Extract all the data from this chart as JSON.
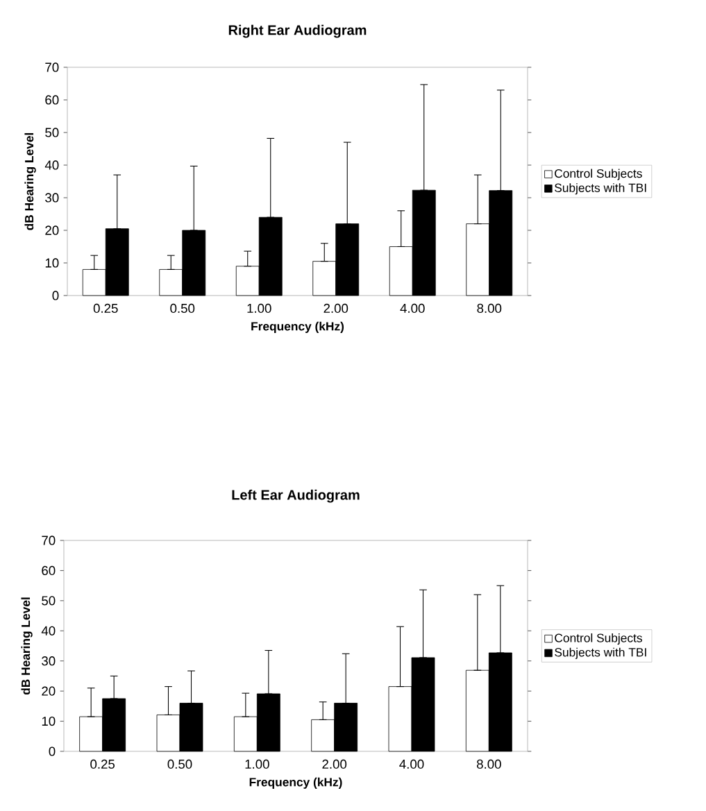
{
  "chart_data": [
    {
      "type": "bar",
      "title": "Right Ear Audiogram",
      "xlabel": "Frequency (kHz)",
      "ylabel": "dB Hearing Level",
      "categories": [
        "0.25",
        "0.50",
        "1.00",
        "2.00",
        "4.00",
        "8.00"
      ],
      "series": [
        {
          "name": "Control Subjects",
          "color": "#ffffff",
          "values": [
            8,
            8,
            9,
            10.5,
            15,
            22
          ],
          "errors": [
            [
              8,
              12.3
            ],
            [
              8,
              12.3
            ],
            [
              9,
              13.6
            ],
            [
              10.5,
              16
            ],
            [
              15,
              26
            ],
            [
              22,
              37
            ]
          ]
        },
        {
          "name": "Subjects with TBI",
          "color": "#000000",
          "values": [
            20.5,
            20,
            24,
            22,
            32.3,
            32.2
          ],
          "errors": [
            [
              20.5,
              37
            ],
            [
              20,
              39.7
            ],
            [
              24,
              48.2
            ],
            [
              22,
              47
            ],
            [
              32.3,
              64.7
            ],
            [
              32.2,
              63
            ]
          ]
        }
      ],
      "ylim": [
        0,
        70
      ],
      "yticks": [
        0,
        10,
        20,
        30,
        40,
        50,
        60,
        70
      ],
      "legend": "right"
    },
    {
      "type": "bar",
      "title": "Left Ear Audiogram",
      "xlabel": "Frequency (kHz)",
      "ylabel": "dB Hearing Level",
      "categories": [
        "0.25",
        "0.50",
        "1.00",
        "2.00",
        "4.00",
        "8.00"
      ],
      "series": [
        {
          "name": "Control Subjects",
          "color": "#ffffff",
          "values": [
            11.5,
            12.1,
            11.5,
            10.5,
            21.5,
            26.9
          ],
          "errors": [
            [
              11.5,
              21
            ],
            [
              12.1,
              21.5
            ],
            [
              11.5,
              19.3
            ],
            [
              10.5,
              16.4
            ],
            [
              21.5,
              41.4
            ],
            [
              26.9,
              52
            ]
          ]
        },
        {
          "name": "Subjects with TBI",
          "color": "#000000",
          "values": [
            17.5,
            16,
            19.1,
            16,
            31.1,
            32.7
          ],
          "errors": [
            [
              17.5,
              25
            ],
            [
              16,
              26.7
            ],
            [
              19.1,
              33.5
            ],
            [
              16,
              32.4
            ],
            [
              31.1,
              53.6
            ],
            [
              32.7,
              55
            ]
          ]
        }
      ],
      "ylim": [
        0,
        70
      ],
      "yticks": [
        0,
        10,
        20,
        30,
        40,
        50,
        60,
        70
      ],
      "legend": "right"
    }
  ]
}
